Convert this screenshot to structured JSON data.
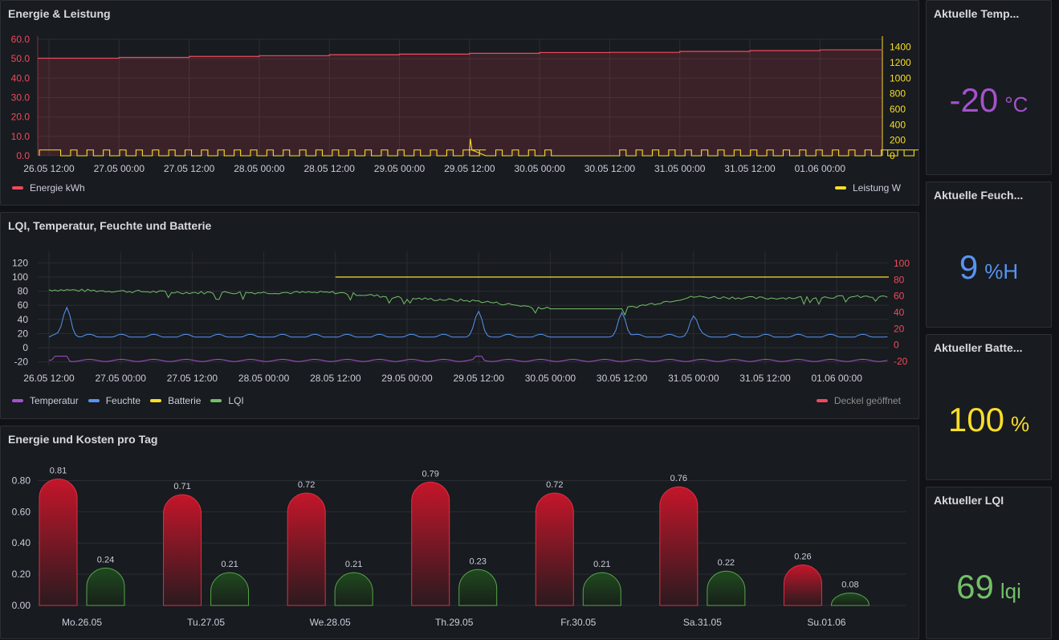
{
  "panels": {
    "energy": {
      "title": "Energie & Leistung",
      "legend": [
        {
          "label": "Energie kWh",
          "color": "#f2495c"
        },
        {
          "label": "Leistung W",
          "color": "#fade2a"
        }
      ]
    },
    "sensors": {
      "title": "LQI, Temperatur, Feuchte und Batterie",
      "legend": [
        {
          "label": "Temperatur",
          "color": "#a352cc"
        },
        {
          "label": "Feuchte",
          "color": "#5794f2"
        },
        {
          "label": "Batterie",
          "color": "#fade2a"
        },
        {
          "label": "LQI",
          "color": "#73bf69"
        }
      ],
      "legend_right": {
        "label": "Deckel geöffnet",
        "color": "#f2495c"
      }
    },
    "daily": {
      "title": "Energie und Kosten pro Tag"
    }
  },
  "stats": [
    {
      "title": "Aktuelle Temp...",
      "value": "-20",
      "unit": "°C",
      "color": "#a352cc"
    },
    {
      "title": "Aktuelle Feuch...",
      "value": "9",
      "unit": "%H",
      "color": "#5794f2"
    },
    {
      "title": "Aktueller Batte...",
      "value": "100",
      "unit": "%",
      "color": "#fade2a"
    },
    {
      "title": "Aktueller LQI",
      "value": "69",
      "unit": "lqi",
      "color": "#73bf69"
    }
  ],
  "chart_data": [
    {
      "type": "line",
      "title": "Energie & Leistung",
      "x_ticks": [
        "26.05 12:00",
        "27.05 00:00",
        "27.05 12:00",
        "28.05 00:00",
        "28.05 12:00",
        "29.05 00:00",
        "29.05 12:00",
        "30.05 00:00",
        "30.05 12:00",
        "31.05 00:00",
        "31.05 12:00",
        "01.06 00:00"
      ],
      "y_left_ticks": [
        "0.0",
        "10.0",
        "20.0",
        "30.0",
        "40.0",
        "50.0",
        "60.0"
      ],
      "y_left_range": [
        0,
        60
      ],
      "y_right_ticks": [
        "0",
        "200",
        "400",
        "600",
        "800",
        "1000",
        "1200",
        "1400"
      ],
      "y_right_range": [
        0,
        1500
      ],
      "series": [
        {
          "name": "Energie kWh",
          "axis": "left",
          "color": "#f2495c",
          "fill": true,
          "x": [
            "26.05 12:00",
            "27.05 00:00",
            "27.05 12:00",
            "28.05 00:00",
            "28.05 12:00",
            "29.05 00:00",
            "29.05 12:00",
            "30.05 00:00",
            "30.05 12:00",
            "31.05 00:00",
            "31.05 12:00",
            "01.06 00:00",
            "01.06 10:00"
          ],
          "values": [
            50.3,
            50.7,
            51.2,
            51.6,
            52.1,
            52.4,
            52.8,
            53.2,
            53.3,
            53.8,
            54.2,
            54.6,
            54.9
          ]
        },
        {
          "name": "Leistung W",
          "axis": "right",
          "color": "#fade2a",
          "pattern": "periodic pulses ~75 W, one spike ~220 W at 29.05 12:00, zero 30.05 00:00–30.05 12:00",
          "pulse_value": 75,
          "spike_value": 220
        }
      ],
      "grid": true,
      "legend_placement": "bottom"
    },
    {
      "type": "line",
      "title": "LQI, Temperatur, Feuchte und Batterie",
      "x_ticks": [
        "26.05 12:00",
        "27.05 00:00",
        "27.05 12:00",
        "28.05 00:00",
        "28.05 12:00",
        "29.05 00:00",
        "29.05 12:00",
        "30.05 00:00",
        "30.05 12:00",
        "31.05 00:00",
        "31.05 12:00",
        "01.06 00:00"
      ],
      "y_left_ticks": [
        "-20",
        "0",
        "20",
        "40",
        "60",
        "80",
        "100",
        "120"
      ],
      "y_left_range": [
        -25,
        125
      ],
      "y_right_ticks": [
        "-20",
        "0",
        "20",
        "40",
        "60",
        "80",
        "100"
      ],
      "y_right_range": [
        -25,
        105
      ],
      "series": [
        {
          "name": "Temperatur",
          "color": "#a352cc",
          "approx_value": -18,
          "range": [
            -20,
            -12
          ]
        },
        {
          "name": "Feuchte",
          "color": "#5794f2",
          "baseline": 15,
          "peaks": [
            {
              "x": "26.05 15:00",
              "value": 57
            },
            {
              "x": "29.05 12:00",
              "value": 48
            },
            {
              "x": "30.05 12:00",
              "value": 50
            },
            {
              "x": "31.05 00:00",
              "value": 45
            }
          ]
        },
        {
          "name": "Batterie",
          "color": "#fade2a",
          "start": "28.05 12:00",
          "value": 100
        },
        {
          "name": "LQI",
          "color": "#73bf69",
          "x": [
            "26.05 12:00",
            "27.05 12:00",
            "28.05 12:00",
            "29.05 00:00",
            "29.05 12:00",
            "30.05 00:00",
            "30.05 12:00",
            "31.05 00:00",
            "31.05 12:00",
            "01.06 00:00",
            "01.06 10:00"
          ],
          "values": [
            82,
            78,
            78,
            70,
            66,
            55,
            55,
            72,
            70,
            72,
            72
          ]
        }
      ],
      "grid": true,
      "legend_placement": "bottom"
    },
    {
      "type": "bar",
      "title": "Energie und Kosten pro Tag",
      "categories": [
        "Mo.26.05",
        "Tu.27.05",
        "We.28.05",
        "Th.29.05",
        "Fr.30.05",
        "Sa.31.05",
        "Su.01.06"
      ],
      "y_ticks": [
        "0.00",
        "0.20",
        "0.40",
        "0.60",
        "0.80"
      ],
      "ylim": [
        0,
        0.9
      ],
      "series": [
        {
          "color": "#c4162a",
          "values": [
            0.81,
            0.71,
            0.72,
            0.79,
            0.72,
            0.76,
            0.26
          ]
        },
        {
          "color": "#73bf69",
          "values": [
            0.24,
            0.21,
            0.21,
            0.23,
            0.21,
            0.22,
            0.08
          ]
        }
      ],
      "grid": true
    }
  ]
}
